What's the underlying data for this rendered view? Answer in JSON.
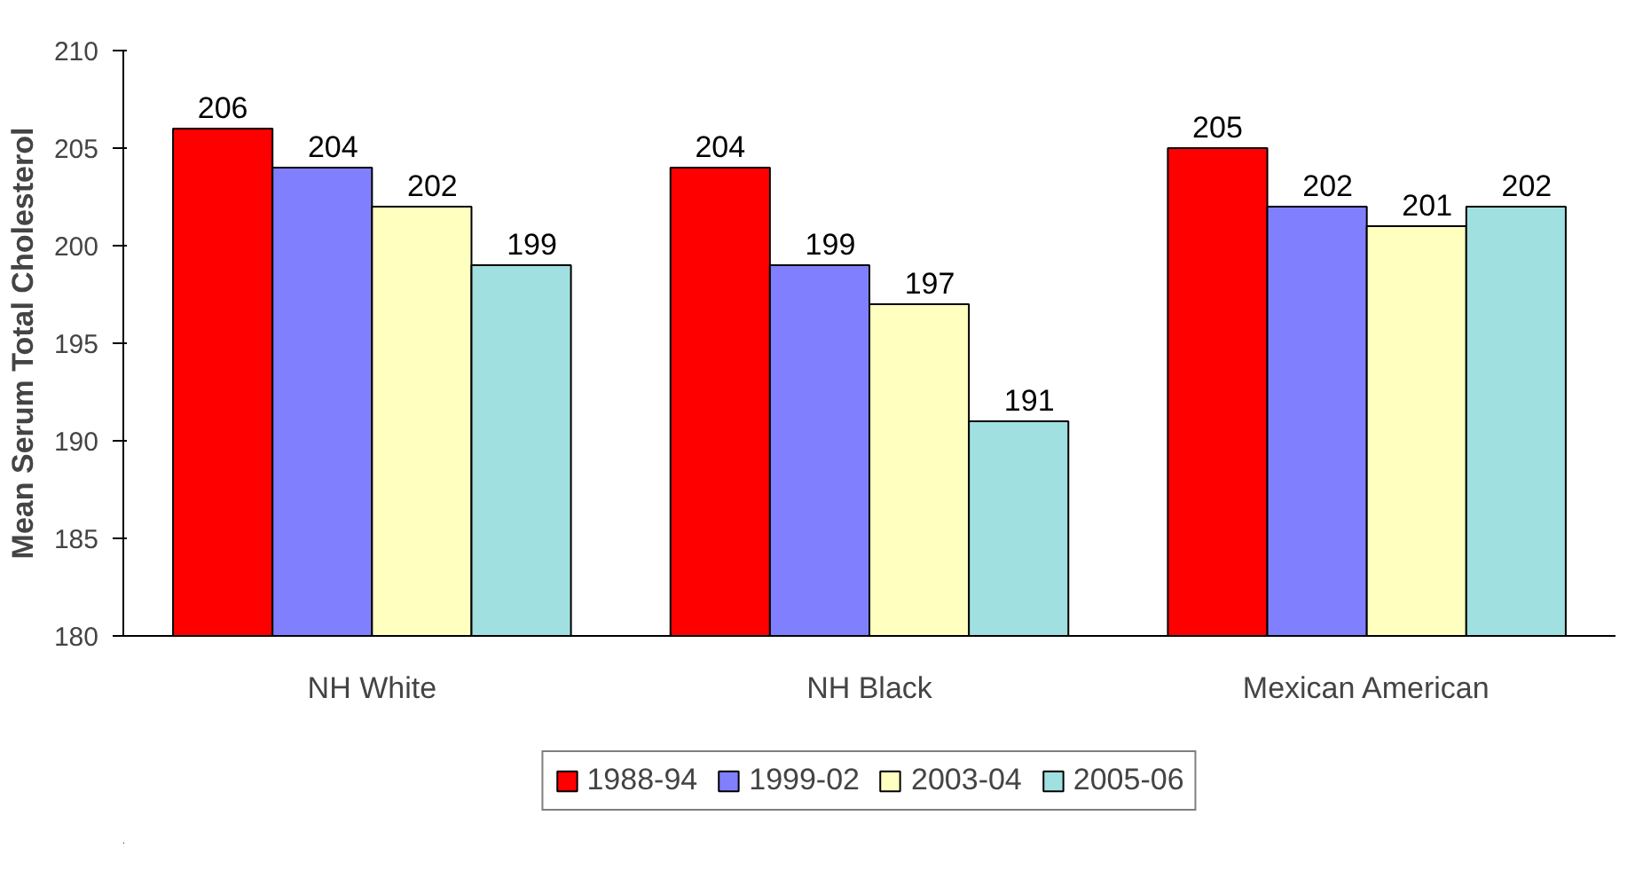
{
  "chart_data": {
    "type": "bar",
    "ylabel": "Mean Serum Total Cholesterol",
    "categories": [
      "NH White",
      "NH Black",
      "Mexican American"
    ],
    "series": [
      {
        "name": "1988-94",
        "color": "#ff0000",
        "values": [
          206,
          204,
          205
        ]
      },
      {
        "name": "1999-02",
        "color": "#8080ff",
        "values": [
          204,
          199,
          202
        ]
      },
      {
        "name": "2003-04",
        "color": "#ffffc0",
        "values": [
          202,
          197,
          201
        ]
      },
      {
        "name": "2005-06",
        "color": "#a0e0e0",
        "values": [
          199,
          191,
          202
        ]
      }
    ],
    "ylim": [
      180,
      210
    ],
    "yticks": [
      180,
      185,
      190,
      195,
      200,
      205,
      210
    ],
    "data_labels": true,
    "grid": false,
    "legend": "bottom"
  }
}
